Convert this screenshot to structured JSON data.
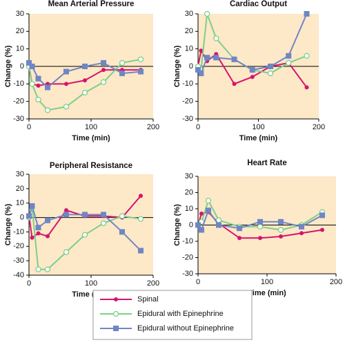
{
  "chart_data": [
    {
      "type": "line",
      "title": "Mean Arterial Pressure",
      "xlabel": "Time (min)",
      "ylabel": "Change (%)",
      "x": [
        0,
        5,
        15,
        30,
        60,
        90,
        120,
        150,
        180
      ],
      "xlim": [
        0,
        200
      ],
      "ylim": [
        -30,
        30
      ],
      "xticks": [
        0,
        100,
        200
      ],
      "yticks": [
        -30,
        -20,
        -10,
        0,
        10,
        20,
        30
      ],
      "series": [
        {
          "values": [
            0,
            -10,
            -11,
            -10,
            -10,
            -8,
            -2,
            -2,
            -2
          ]
        },
        {
          "values": [
            0,
            -10,
            -19,
            -25,
            -23,
            -15,
            -9,
            2,
            4
          ]
        },
        {
          "values": [
            2,
            0,
            -7,
            -12,
            -3,
            0,
            2,
            -4,
            -3
          ]
        }
      ]
    },
    {
      "type": "line",
      "title": "Cardiac Output",
      "xlabel": "Time (min)",
      "ylabel": "Change (%)",
      "x": [
        0,
        5,
        15,
        30,
        60,
        90,
        120,
        150,
        180
      ],
      "xlim": [
        0,
        200
      ],
      "ylim": [
        -30,
        30
      ],
      "xticks": [
        0,
        100,
        200
      ],
      "yticks": [
        -30,
        -20,
        -10,
        0,
        10,
        20,
        30
      ],
      "series": [
        {
          "values": [
            0,
            9,
            3,
            7,
            -10,
            -6,
            0,
            2,
            -12
          ]
        },
        {
          "values": [
            0,
            -2,
            30,
            16,
            4,
            -2,
            -4,
            2,
            6
          ]
        },
        {
          "values": [
            -2,
            -4,
            5,
            5,
            4,
            -2,
            0,
            6,
            30
          ]
        }
      ]
    },
    {
      "type": "line",
      "title": "Peripheral Resistance",
      "xlabel": "Time (min)",
      "ylabel": "Change (%)",
      "x": [
        0,
        5,
        15,
        30,
        60,
        90,
        120,
        150,
        180
      ],
      "xlim": [
        0,
        200
      ],
      "ylim": [
        -40,
        30
      ],
      "xticks": [
        0,
        100,
        200
      ],
      "yticks": [
        -40,
        -30,
        -20,
        -10,
        0,
        10,
        20,
        30
      ],
      "series": [
        {
          "values": [
            1,
            -14,
            -11,
            -13,
            5,
            1,
            1,
            0,
            15
          ]
        },
        {
          "values": [
            0,
            7,
            -36,
            -36,
            -24,
            -12,
            -4,
            1,
            -1
          ]
        },
        {
          "values": [
            1,
            8,
            -7,
            -2,
            2,
            2,
            2,
            -10,
            -23
          ]
        }
      ]
    },
    {
      "type": "line",
      "title": "Heart Rate",
      "xlabel": "Time (min)",
      "ylabel": "Change (%)",
      "x": [
        0,
        5,
        15,
        30,
        60,
        90,
        120,
        150,
        180
      ],
      "xlim": [
        0,
        200
      ],
      "ylim": [
        -30,
        30
      ],
      "xticks": [
        0,
        100,
        200
      ],
      "yticks": [
        -30,
        -20,
        -10,
        0,
        10,
        20,
        30
      ],
      "series": [
        {
          "values": [
            0,
            7,
            8,
            1,
            -8,
            -8,
            -7,
            -5,
            -3
          ]
        },
        {
          "values": [
            0,
            2,
            15,
            3,
            -1,
            -1,
            -3,
            0,
            8
          ]
        },
        {
          "values": [
            0,
            -3,
            9,
            0,
            -2,
            2,
            2,
            -1,
            6
          ]
        }
      ]
    }
  ],
  "legend": [
    {
      "name": "Spinal",
      "color": "#d4156c",
      "marker": "dot"
    },
    {
      "name": "Epidural with Epinephrine",
      "color": "#7ccf8a",
      "marker": "ring"
    },
    {
      "name": "Epidural without Epinephrine",
      "color": "#6f86c4",
      "marker": "square"
    }
  ]
}
